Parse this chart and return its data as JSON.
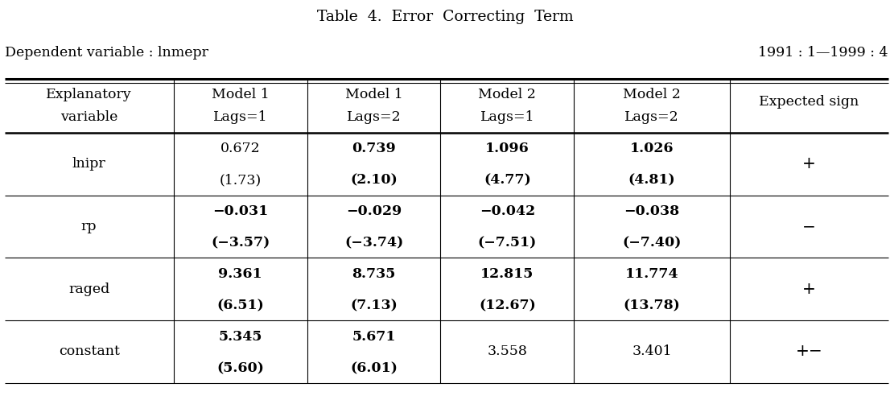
{
  "title": "Table  4.  Error  Correcting  Term",
  "dependent_variable": "Dependent variable : lnmepr",
  "date_range": "1991 : 1—1999 : 4",
  "col_headers": [
    [
      "Explanatory",
      "variable"
    ],
    [
      "Model 1",
      "Lags=1"
    ],
    [
      "Model 1",
      "Lags=2"
    ],
    [
      "Model 2",
      "Lags=1"
    ],
    [
      "Model 2",
      "Lags=2"
    ],
    [
      "Expected sign",
      ""
    ]
  ],
  "rows": [
    {
      "label": "lnipr",
      "values": [
        [
          "0.672",
          "(1.73)"
        ],
        [
          "0.739",
          "(2.10)"
        ],
        [
          "1.096",
          "(4.77)"
        ],
        [
          "1.026",
          "(4.81)"
        ]
      ],
      "bold": [
        false,
        true,
        true,
        true
      ],
      "sign": "+"
    },
    {
      "label": "rp",
      "values": [
        [
          "−0.031",
          "(−3.57)"
        ],
        [
          "−0.029",
          "(−3.74)"
        ],
        [
          "−0.042",
          "(−7.51)"
        ],
        [
          "−0.038",
          "(−7.40)"
        ]
      ],
      "bold": [
        true,
        true,
        true,
        true
      ],
      "sign": "−"
    },
    {
      "label": "raged",
      "values": [
        [
          "9.361",
          "(6.51)"
        ],
        [
          "8.735",
          "(7.13)"
        ],
        [
          "12.815",
          "(12.67)"
        ],
        [
          "11.774",
          "(13.78)"
        ]
      ],
      "bold": [
        true,
        true,
        true,
        true
      ],
      "sign": "+"
    },
    {
      "label": "constant",
      "values": [
        [
          "5.345",
          "(5.60)"
        ],
        [
          "5.671",
          "(6.01)"
        ],
        [
          "3.558",
          ""
        ],
        [
          "3.401",
          ""
        ]
      ],
      "bold": [
        true,
        true,
        false,
        false
      ],
      "sign": "+−"
    }
  ],
  "background_color": "#ffffff",
  "text_color": "#000000",
  "font_size": 12.5,
  "title_font_size": 13.5
}
